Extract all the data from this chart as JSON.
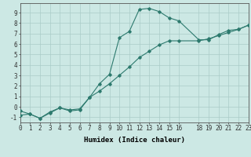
{
  "title": "",
  "xlabel": "Humidex (Indice chaleur)",
  "background_color": "#cce8e4",
  "line_color": "#2d7a6e",
  "grid_color": "#aaccc8",
  "curve1_x": [
    0,
    1,
    2,
    3,
    4,
    5,
    6,
    7,
    8,
    9,
    10,
    11,
    12,
    13,
    14,
    15,
    16,
    18,
    19,
    20,
    21,
    22,
    23
  ],
  "curve1_y": [
    -0.4,
    -0.7,
    -1.1,
    -0.6,
    -0.1,
    -0.4,
    -0.3,
    0.9,
    2.2,
    3.1,
    6.6,
    7.2,
    9.3,
    9.4,
    9.1,
    8.5,
    8.2,
    6.4,
    6.4,
    6.9,
    7.3,
    7.4,
    7.8
  ],
  "curve2_x": [
    0,
    1,
    2,
    3,
    4,
    5,
    6,
    7,
    8,
    9,
    10,
    11,
    12,
    13,
    14,
    15,
    16,
    18,
    19,
    20,
    21,
    22,
    23
  ],
  "curve2_y": [
    -0.8,
    -0.7,
    -1.1,
    -0.5,
    -0.1,
    -0.3,
    -0.2,
    0.9,
    1.5,
    2.2,
    3.0,
    3.8,
    4.7,
    5.3,
    5.9,
    6.3,
    6.3,
    6.3,
    6.5,
    6.8,
    7.1,
    7.4,
    7.8
  ],
  "xlim": [
    0,
    23
  ],
  "ylim": [
    -1.5,
    9.9
  ],
  "xticks": [
    0,
    1,
    2,
    3,
    4,
    5,
    6,
    7,
    8,
    9,
    10,
    11,
    12,
    13,
    14,
    15,
    16,
    18,
    19,
    20,
    21,
    22,
    23
  ],
  "yticks": [
    -1,
    0,
    1,
    2,
    3,
    4,
    5,
    6,
    7,
    8,
    9
  ],
  "tick_fontsize": 5.5,
  "label_fontsize": 6.5
}
